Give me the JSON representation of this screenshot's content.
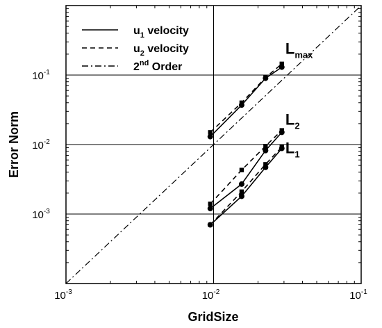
{
  "chart_data": {
    "type": "line",
    "xscale": "log",
    "yscale": "log",
    "xlim": [
      0.001,
      0.1
    ],
    "ylim": [
      0.0001,
      1
    ],
    "xlabel": "GridSize",
    "ylabel": "Error Norm",
    "grid": true,
    "legend_position": "top-left",
    "x_ticks": [
      {
        "value": 0.001,
        "base": "10",
        "exp": "-3"
      },
      {
        "value": 0.01,
        "base": "10",
        "exp": "-2"
      },
      {
        "value": 0.1,
        "base": "10",
        "exp": "-1"
      }
    ],
    "y_ticks": [
      {
        "value": 0.001,
        "base": "10",
        "exp": "-3"
      },
      {
        "value": 0.01,
        "base": "10",
        "exp": "-2"
      },
      {
        "value": 0.1,
        "base": "10",
        "exp": "-1"
      }
    ],
    "legend": [
      {
        "style": "solid",
        "label_pre": "u",
        "label_sub": "1",
        "label_post": " velocity"
      },
      {
        "style": "dashed",
        "label_pre": "u",
        "label_sub": "2",
        "label_post": " velocity"
      },
      {
        "style": "dashdot",
        "label_pre": "2",
        "label_sup": "nd",
        "label_post": " Order"
      }
    ],
    "series": [
      {
        "legend": "u1",
        "style": "solid",
        "marker": "circle",
        "x": [
          0.0095,
          0.0155,
          0.0225,
          0.029
        ],
        "y": [
          0.013,
          0.037,
          0.09,
          0.13
        ]
      },
      {
        "legend": "u2",
        "style": "dashed",
        "marker": "square",
        "x": [
          0.0095,
          0.0155,
          0.0225,
          0.029
        ],
        "y": [
          0.015,
          0.04,
          0.092,
          0.145
        ]
      },
      {
        "legend": "u1",
        "style": "solid",
        "marker": "circle",
        "x": [
          0.0095,
          0.0155,
          0.0225,
          0.029
        ],
        "y": [
          0.0012,
          0.0027,
          0.0082,
          0.015
        ]
      },
      {
        "legend": "u2",
        "style": "dashed",
        "marker": "square",
        "x": [
          0.0095,
          0.0155,
          0.0225,
          0.029
        ],
        "y": [
          0.0014,
          0.0043,
          0.0095,
          0.016
        ]
      },
      {
        "legend": "u1",
        "style": "solid",
        "marker": "circle",
        "x": [
          0.0095,
          0.0155,
          0.0225,
          0.029
        ],
        "y": [
          0.0007,
          0.0018,
          0.0047,
          0.0088
        ]
      },
      {
        "legend": "u2",
        "style": "dashed",
        "marker": "square",
        "x": [
          0.0095,
          0.0155,
          0.0225,
          0.029
        ],
        "y": [
          0.0007,
          0.0021,
          0.0052,
          0.0092
        ]
      }
    ],
    "reference_line": {
      "style": "dashdot",
      "x": [
        0.001,
        0.1
      ],
      "y": [
        0.0001,
        1
      ]
    },
    "annotations": [
      {
        "text": "L",
        "sub": "max",
        "x": 0.03,
        "y": 0.14
      },
      {
        "text": "L",
        "sub": "2",
        "x": 0.03,
        "y": 0.016
      },
      {
        "text": "L",
        "sub": "1",
        "x": 0.03,
        "y": 0.009
      }
    ]
  }
}
